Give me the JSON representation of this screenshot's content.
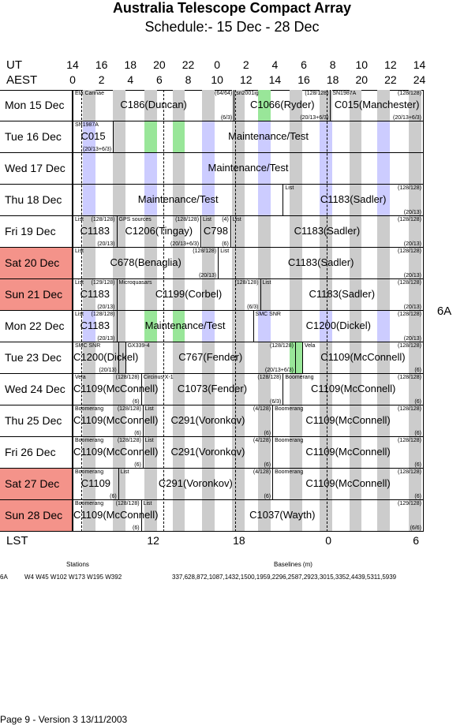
{
  "header": {
    "title": "Australia Telescope Compact Array",
    "subtitle": "Schedule:- 15 Dec - 28 Dec"
  },
  "axes": {
    "ut_label": "UT",
    "aest_label": "AEST",
    "lst_label": "LST",
    "ut_ticks": [
      "14",
      "16",
      "18",
      "20",
      "22",
      "0",
      "2",
      "4",
      "6",
      "8",
      "10",
      "12",
      "14"
    ],
    "aest_ticks": [
      "0",
      "2",
      "4",
      "6",
      "8",
      "10",
      "12",
      "14",
      "16",
      "18",
      "20",
      "22",
      "24"
    ],
    "lst_ticks": [
      "12",
      "18",
      "0",
      "6"
    ]
  },
  "config_label": "6A",
  "colors": {
    "weekend": "#f4938a",
    "grey_stripe": "#cccccc",
    "blue_stripe": "#ccccff",
    "green_stripe": "#99e699"
  },
  "days": [
    {
      "label": "Mon  15 Dec",
      "weekend": false,
      "segs": [
        {
          "start": 0,
          "end": 9.2,
          "main": "C186(Duncan)",
          "tl": "Eta Carinae",
          "tr": "(64/64)",
          "br": "(6/3)"
        },
        {
          "start": 9.2,
          "end": 14.7,
          "main": "C1066(Ryder)",
          "tl": "sn2001ig",
          "tr": "(128/128)",
          "br": "(20/13+6/3)"
        },
        {
          "start": 14.7,
          "end": 20,
          "main": "C015(Manchester)",
          "tl": "SN1987A",
          "tr": "(128/128)",
          "br": "(20/13+6/3)"
        }
      ]
    },
    {
      "label": "Tue  16 Dec",
      "weekend": false,
      "segs": [
        {
          "start": 0,
          "end": 2.3,
          "main": "C015",
          "tl": "SN1987A",
          "tr": "",
          "br": "(20/13+6/3)"
        },
        {
          "start": 2.3,
          "end": 20,
          "main": "Maintenance/Test",
          "tl": "",
          "tr": "",
          "br": ""
        }
      ]
    },
    {
      "label": "Wed  17 Dec",
      "weekend": false,
      "segs": [
        {
          "start": 0,
          "end": 20,
          "main": "Maintenance/Test",
          "tl": "",
          "tr": "",
          "br": ""
        }
      ]
    },
    {
      "label": "Thu  18 Dec",
      "weekend": false,
      "segs": [
        {
          "start": 0,
          "end": 12,
          "main": "Maintenance/Test",
          "tl": "",
          "tr": "",
          "br": ""
        },
        {
          "start": 12,
          "end": 20,
          "main": "C1183(Sadler)",
          "tl": "List",
          "tr": "(128/128)",
          "br": "(20/13)"
        }
      ]
    },
    {
      "label": "Fri  19 Dec",
      "weekend": false,
      "segs": [
        {
          "start": 0,
          "end": 2.5,
          "main": "C1183",
          "tl": "List",
          "tr": "(128/128)",
          "br": "(20/13)"
        },
        {
          "start": 2.5,
          "end": 7.3,
          "main": "C1206(Tingay)",
          "tl": "GPS sources",
          "tr": "(128/128)",
          "br": "(20/13+6/3)"
        },
        {
          "start": 7.3,
          "end": 9,
          "main": "C798",
          "tl": "List",
          "tr": "(4)",
          "br": "(6)"
        },
        {
          "start": 9,
          "end": 20,
          "main": "C1183(Sadler)",
          "tl": "List",
          "tr": "(128/128)",
          "br": "(20/13)"
        }
      ]
    },
    {
      "label": "Sat  20 Dec",
      "weekend": true,
      "segs": [
        {
          "start": 0,
          "end": 8.3,
          "main": "C678(Benaglia)",
          "tl": "List",
          "tr": "(128/128)",
          "br": "(20/13)"
        },
        {
          "start": 8.3,
          "end": 20,
          "main": "C1183(Sadler)",
          "tl": "List",
          "tr": "(128/128)",
          "br": "(20/13)"
        }
      ]
    },
    {
      "label": "Sun  21 Dec",
      "weekend": true,
      "segs": [
        {
          "start": 0,
          "end": 2.5,
          "main": "C1183",
          "tl": "List",
          "tr": "(129/128)",
          "br": "(20/13)"
        },
        {
          "start": 2.5,
          "end": 10.7,
          "main": "C1199(Corbel)",
          "tl": "Microquasars",
          "tr": "(128/128)",
          "br": "(6/3)"
        },
        {
          "start": 10.7,
          "end": 20,
          "main": "C1183(Sadler)",
          "tl": "List",
          "tr": "(128/128)",
          "br": "(20/13)"
        }
      ]
    },
    {
      "label": "Mon  22 Dec",
      "weekend": false,
      "segs": [
        {
          "start": 0,
          "end": 2.5,
          "main": "C1183",
          "tl": "List",
          "tr": "(128/128)",
          "br": "(20/13)"
        },
        {
          "start": 2.5,
          "end": 10.3,
          "main": "Maintenance/Test",
          "tl": "",
          "tr": "",
          "br": ""
        },
        {
          "start": 10.3,
          "end": 20,
          "main": "C1200(Dickel)",
          "tl": "SMC SNR",
          "tr": "(128/128)",
          "br": "(20/13)"
        }
      ]
    },
    {
      "label": "Tue  23 Dec",
      "weekend": false,
      "segs": [
        {
          "start": 0,
          "end": 2.6,
          "main": "C1200(Dickel)",
          "tl": "SMC SNR",
          "tr": "",
          "br": "(20/13)"
        },
        {
          "start": 2.6,
          "end": 3.0,
          "main": "",
          "tl": "",
          "tr": "",
          "br": ""
        },
        {
          "start": 3.0,
          "end": 12.7,
          "main": "C767(Fender)",
          "tl": "GX339-4",
          "tr": "(128/128)",
          "br": "(20/13+6/3)"
        },
        {
          "start": 12.7,
          "end": 13.1,
          "main": "",
          "tl": "",
          "tr": "",
          "br": ""
        },
        {
          "start": 13.1,
          "end": 20,
          "main": "C1109(McConnell)",
          "tl": "Vela",
          "tr": "(128/128)",
          "br": "(6)"
        }
      ]
    },
    {
      "label": "Wed  24 Dec",
      "weekend": false,
      "segs": [
        {
          "start": 0,
          "end": 3.9,
          "main": "C1109(McConnell)",
          "tl": "Vela",
          "tr": "(128/128)",
          "br": "(6)"
        },
        {
          "start": 3.9,
          "end": 12,
          "main": "C1073(Fender)",
          "tl": "Circinus X-1",
          "tr": "(128/128)",
          "br": "(6/3)"
        },
        {
          "start": 12,
          "end": 20,
          "main": "C1109(McConnell)",
          "tl": "Boomerang",
          "tr": "(128/128)",
          "br": "(6)"
        }
      ]
    },
    {
      "label": "Thu  25 Dec",
      "weekend": false,
      "segs": [
        {
          "start": 0,
          "end": 4,
          "main": "C1109(McConnell)",
          "tl": "Boomerang",
          "tr": "(128/128)",
          "br": "(6)"
        },
        {
          "start": 4,
          "end": 11.4,
          "main": "C291(Voronkov)",
          "tl": "List",
          "tr": "(4/128)",
          "br": "(6)"
        },
        {
          "start": 11.4,
          "end": 20,
          "main": "C1109(McConnell)",
          "tl": "Boomerang",
          "tr": "(128/128)",
          "br": "(6)"
        }
      ]
    },
    {
      "label": "Fri  26 Dec",
      "weekend": false,
      "segs": [
        {
          "start": 0,
          "end": 4,
          "main": "C1109(McConnell)",
          "tl": "Boomerang",
          "tr": "(128/128)",
          "br": "(6)"
        },
        {
          "start": 4,
          "end": 11.4,
          "main": "C291(Voronkov)",
          "tl": "List",
          "tr": "(4/128)",
          "br": "(6)"
        },
        {
          "start": 11.4,
          "end": 20,
          "main": "C1109(McConnell)",
          "tl": "Boomerang",
          "tr": "(128/128)",
          "br": "(6)"
        }
      ]
    },
    {
      "label": "Sat  27 Dec",
      "weekend": true,
      "segs": [
        {
          "start": 0,
          "end": 2.6,
          "main": "C1109",
          "tl": "Boomerang",
          "tr": "",
          "br": "(6)"
        },
        {
          "start": 2.6,
          "end": 11.4,
          "main": "C291(Voronkov)",
          "tl": "List",
          "tr": "(4/128)",
          "br": "(6)"
        },
        {
          "start": 11.4,
          "end": 20,
          "main": "C1109(McConnell)",
          "tl": "Boomerang",
          "tr": "(128/128)",
          "br": "(6)"
        }
      ]
    },
    {
      "label": "Sun  28 Dec",
      "weekend": true,
      "segs": [
        {
          "start": 0,
          "end": 3.9,
          "main": "C1109(McConnell)",
          "tl": "Boomerang",
          "tr": "(128/128)",
          "br": "(6)"
        },
        {
          "start": 3.9,
          "end": 20,
          "main": "C1037(Wayth)",
          "tl": "List",
          "tr": "(129/128)",
          "br": "(6/6)"
        }
      ]
    }
  ],
  "stations": {
    "heading": "Stations",
    "config": "6A",
    "list": "W4 W45 W102 W173 W195 W392"
  },
  "baselines": {
    "heading": "Baselines (m)",
    "list": "337,628,872,1087,1432,1500,1959,2296,2587,2923,3015,3352,4439,5311,5939"
  },
  "footer": "Page 9 - Version 3  13/11/2003"
}
